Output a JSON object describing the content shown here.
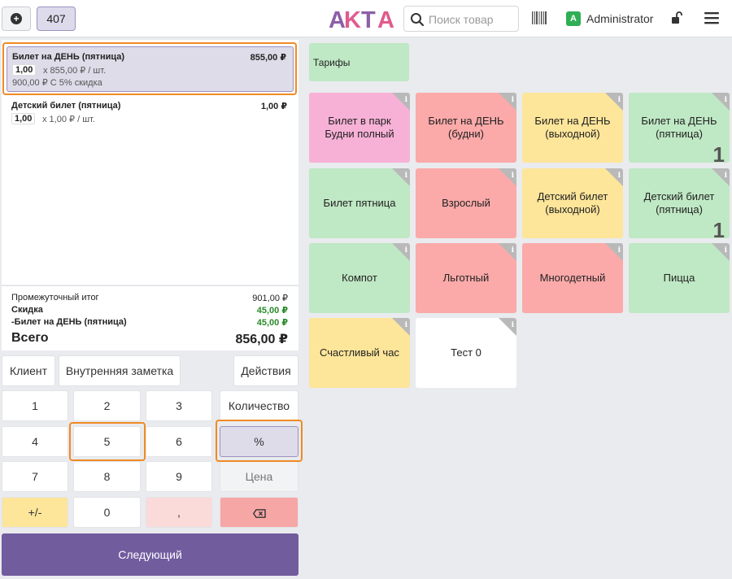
{
  "header": {
    "add_order_icon": "plus-circle-icon",
    "order_number": "407",
    "logo_text": "AKTA",
    "search_placeholder": "Поиск товар",
    "barcode_icon": "barcode-icon",
    "user_initial": "A",
    "user_name": "Administrator",
    "lock_icon": "unlock-icon",
    "menu_icon": "hamburger-icon"
  },
  "order": {
    "lines": [
      {
        "name": "Билет на ДЕНЬ (пятница)",
        "price": "855,00 ₽",
        "qty": "1,00",
        "unit": "x 855,00 ₽ / шт.",
        "discount": "900,00 ₽ С 5% скидка",
        "selected": true
      },
      {
        "name": "Детский билет (пятница)",
        "price": "1,00 ₽",
        "qty": "1,00",
        "unit": "x 1,00 ₽ / шт.",
        "discount": "",
        "selected": false
      }
    ],
    "summary": {
      "subtotal_label": "Промежуточный итог",
      "subtotal_value": "901,00 ₽",
      "discount_label": "Скидка",
      "discount_value": "45,00 ₽",
      "discount_line_label": "-Билет на ДЕНЬ (пятница)",
      "discount_line_value": "45,00 ₽",
      "total_label": "Всего",
      "total_value": "856,00 ₽"
    }
  },
  "controls": {
    "customer": "Клиент",
    "internal_note": "Внутренняя заметка",
    "actions": "Действия"
  },
  "numpad": {
    "k1": "1",
    "k2": "2",
    "k3": "3",
    "k4": "4",
    "k5": "5",
    "k6": "6",
    "k7": "7",
    "k8": "8",
    "k9": "9",
    "plusminus": "+/-",
    "k0": "0",
    "comma": ",",
    "quantity": "Количество",
    "percent": "%",
    "price": "Цена",
    "backspace_icon": "backspace-icon",
    "active_mode": "%"
  },
  "next_button": "Следующий",
  "category_button": "Тарифы",
  "products": [
    {
      "name": "Билет в парк Будни полный",
      "color": "pink",
      "count": ""
    },
    {
      "name": "Билет на ДЕНЬ (будни)",
      "color": "red",
      "count": ""
    },
    {
      "name": "Билет на ДЕНЬ (выходной)",
      "color": "yellow",
      "count": ""
    },
    {
      "name": "Билет на ДЕНЬ (пятница)",
      "color": "green",
      "count": "1"
    },
    {
      "name": "Билет пятница",
      "color": "green",
      "count": ""
    },
    {
      "name": "Взрослый",
      "color": "red",
      "count": ""
    },
    {
      "name": "Детский билет (выходной)",
      "color": "yellow",
      "count": ""
    },
    {
      "name": "Детский билет (пятница)",
      "color": "green",
      "count": "1"
    },
    {
      "name": "Компот",
      "color": "green",
      "count": ""
    },
    {
      "name": "Льготный",
      "color": "red",
      "count": ""
    },
    {
      "name": "Многодетный",
      "color": "red",
      "count": ""
    },
    {
      "name": "Пицца",
      "color": "green",
      "count": ""
    },
    {
      "name": "Счастливый час",
      "color": "yellow",
      "count": ""
    },
    {
      "name": "Тест 0",
      "color": "white",
      "count": ""
    }
  ],
  "product_info_glyph": "i",
  "colors": {
    "accent_purple": "#715c9e",
    "highlight_orange": "#f08a24",
    "discount_green": "#2a8a2a",
    "logo_purple": "#8c5fa8",
    "logo_pink": "#e05b8c"
  }
}
